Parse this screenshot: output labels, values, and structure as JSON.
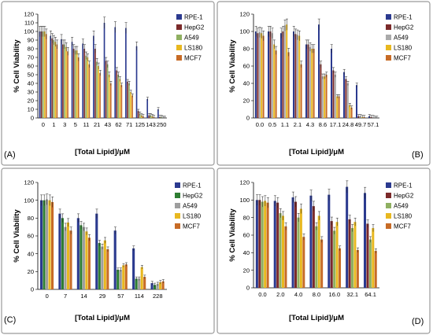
{
  "panels": [
    {
      "type": "bar",
      "label": "(A)",
      "ylabel": "% Cell Viability",
      "xlabel": "[Total Lipid]/μM",
      "ylim": [
        0,
        120
      ],
      "yticks": [
        0,
        10,
        20,
        30,
        40,
        50,
        60,
        70,
        80,
        90,
        100,
        110,
        120
      ],
      "legend_position": "top-right",
      "categories": [
        "0",
        "1",
        "3",
        "5",
        "11",
        "21",
        "43",
        "62",
        "71",
        "125",
        "143",
        "250"
      ],
      "series": [
        {
          "name": "RPE-1",
          "color": "#2b3a8f",
          "values": [
            100,
            95,
            91,
            88,
            86,
            95,
            110,
            105,
            104,
            83,
            22,
            10
          ]
        },
        {
          "name": "HepG2",
          "color": "#7b2a2a",
          "values": [
            100,
            92,
            85,
            80,
            80,
            80,
            66,
            55,
            42,
            8,
            3,
            1
          ]
        },
        {
          "name": "A549",
          "color": "#8fb061",
          "values": [
            100,
            90,
            85,
            78,
            72,
            65,
            62,
            50,
            40,
            5,
            3,
            1
          ]
        },
        {
          "name": "LS180",
          "color": "#e8b820",
          "values": [
            100,
            88,
            82,
            78,
            70,
            60,
            50,
            45,
            30,
            3,
            2,
            0
          ]
        },
        {
          "name": "MCF7",
          "color": "#c76b26",
          "values": [
            97,
            85,
            77,
            70,
            62,
            52,
            40,
            38,
            26,
            2,
            1,
            0
          ]
        }
      ]
    },
    {
      "type": "bar",
      "label": "(B)",
      "ylabel": "% Cell Viability",
      "xlabel": "[Total Lipid]/μM",
      "ylim": [
        0,
        120
      ],
      "yticks": [
        0,
        20,
        40,
        60,
        80,
        100,
        120
      ],
      "legend_position": "top-right",
      "categories": [
        "0.0",
        "0.5",
        "1.1",
        "2.1",
        "4.3",
        "8.6",
        "17.1",
        "24.8",
        "49.7",
        "57.1"
      ],
      "series": [
        {
          "name": "RPE-1",
          "color": "#2b3a8f",
          "values": [
            100,
            100,
            98,
            100,
            85,
            108,
            80,
            53,
            38,
            2
          ]
        },
        {
          "name": "HepG2",
          "color": "#7b2a2a",
          "values": [
            98,
            100,
            100,
            97,
            85,
            62,
            55,
            45,
            2,
            1
          ]
        },
        {
          "name": "A549",
          "color": "#aaaaaa",
          "values": [
            99,
            98,
            107,
            96,
            82,
            48,
            50,
            40,
            2,
            1
          ]
        },
        {
          "name": "LS180",
          "color": "#e8b820",
          "values": [
            98,
            85,
            108,
            95,
            80,
            48,
            25,
            15,
            1,
            0
          ]
        },
        {
          "name": "MCF7",
          "color": "#c76b26",
          "values": [
            95,
            78,
            76,
            62,
            80,
            50,
            25,
            12,
            1,
            0
          ]
        }
      ]
    },
    {
      "type": "bar",
      "label": "(C)",
      "ylabel": "% Cell Viability",
      "xlabel": "[Total Lipid]/μM",
      "ylim": [
        0,
        120
      ],
      "yticks": [
        0,
        20,
        40,
        60,
        80,
        100,
        120
      ],
      "legend_position": "top-right",
      "categories": [
        "0",
        "7",
        "14",
        "29",
        "57",
        "114",
        "228"
      ],
      "series": [
        {
          "name": "RPE-1",
          "color": "#2b3a8f",
          "values": [
            100,
            85,
            80,
            85,
            66,
            46,
            7
          ]
        },
        {
          "name": "HepG2",
          "color": "#2e7d32",
          "values": [
            100,
            80,
            72,
            52,
            22,
            12,
            5
          ]
        },
        {
          "name": "A549",
          "color": "#9e9e9e",
          "values": [
            101,
            70,
            70,
            48,
            22,
            12,
            6
          ]
        },
        {
          "name": "LS180",
          "color": "#e8b820",
          "values": [
            100,
            75,
            65,
            55,
            27,
            25,
            8
          ]
        },
        {
          "name": "MCF7",
          "color": "#c76b26",
          "values": [
            98,
            66,
            58,
            45,
            28,
            14,
            9
          ]
        }
      ]
    },
    {
      "type": "bar",
      "label": "(D)",
      "ylabel": "% Cell Viability",
      "xlabel": "[Total Lipid]/μM",
      "ylim": [
        0,
        120
      ],
      "yticks": [
        0,
        20,
        40,
        60,
        80,
        100,
        120
      ],
      "legend_position": "top-right",
      "categories": [
        "0.0",
        "2.0",
        "4.0",
        "8.0",
        "16.0",
        "32.1",
        "64.1"
      ],
      "series": [
        {
          "name": "RPE-1",
          "color": "#2b3a8f",
          "values": [
            100,
            99,
            103,
            105,
            106,
            115,
            108
          ]
        },
        {
          "name": "HepG2",
          "color": "#7b2a2a",
          "values": [
            100,
            97,
            98,
            93,
            76,
            78,
            73
          ]
        },
        {
          "name": "A549",
          "color": "#8fb061",
          "values": [
            98,
            85,
            80,
            70,
            65,
            68,
            55
          ]
        },
        {
          "name": "LS180",
          "color": "#e8b820",
          "values": [
            99,
            82,
            90,
            82,
            75,
            75,
            68
          ]
        },
        {
          "name": "MCF7",
          "color": "#c76b26",
          "values": [
            97,
            70,
            58,
            55,
            45,
            43,
            42
          ]
        }
      ]
    }
  ]
}
